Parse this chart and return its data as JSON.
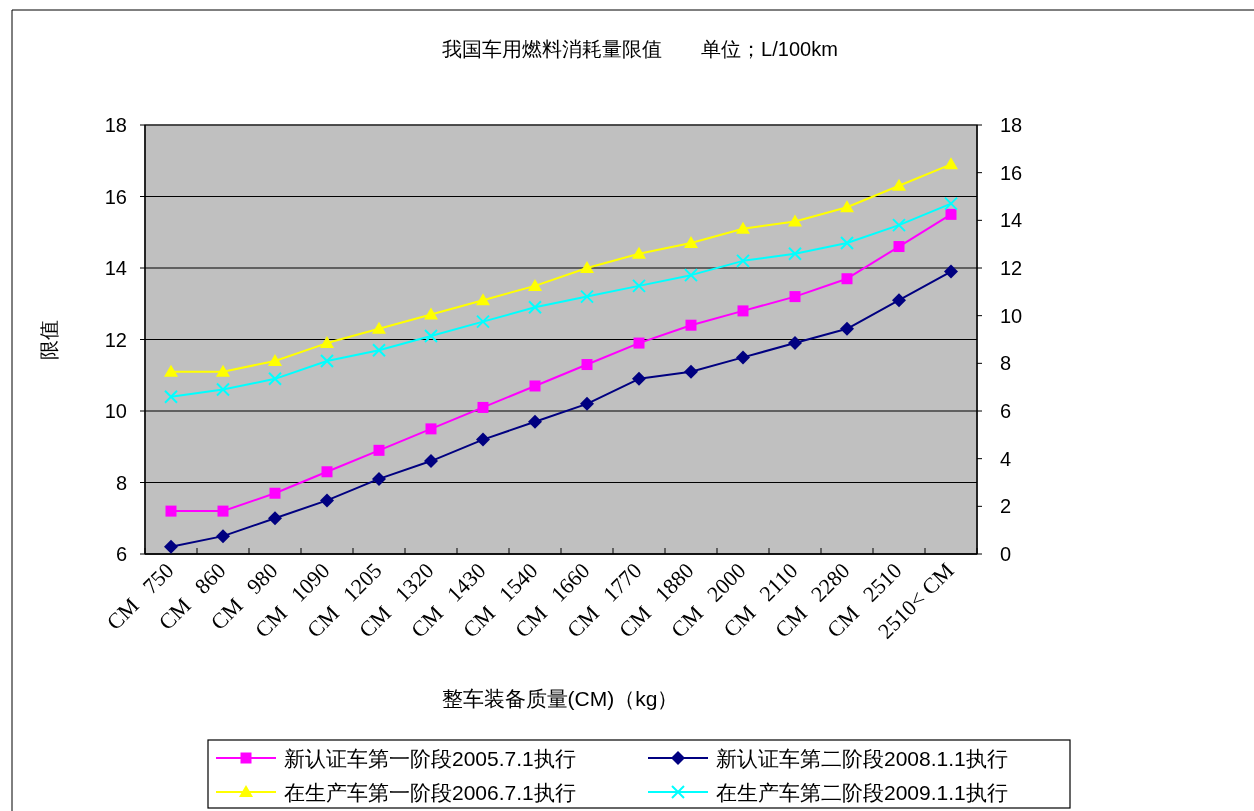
{
  "chart_data": {
    "type": "line",
    "title": "我国车用燃料消耗量限值       单位；L/100km",
    "xlabel": "整车装备质量(CM)（kg）",
    "ylabel": "限值",
    "categories": [
      "CM   750",
      "CM   860",
      "CM   980",
      "CM   1090",
      "CM   1205",
      "CM   1320",
      "CM   1430",
      "CM   1540",
      "CM   1660",
      "CM   1770",
      "CM   1880",
      "CM   2000",
      "CM   2110",
      "CM   2280",
      "CM   2510",
      "2510< CM"
    ],
    "series": [
      {
        "name": "新认证车第一阶段2005.7.1执行",
        "color": "#ff00ff",
        "marker": "square",
        "values": [
          7.2,
          7.2,
          7.7,
          8.3,
          8.9,
          9.5,
          10.1,
          10.7,
          11.3,
          11.9,
          12.4,
          12.8,
          13.2,
          13.7,
          14.6,
          15.5
        ]
      },
      {
        "name": "新认证车第二阶段2008.1.1执行",
        "color": "#000080",
        "marker": "diamond",
        "values": [
          6.2,
          6.5,
          7.0,
          7.5,
          8.1,
          8.6,
          9.2,
          9.7,
          10.2,
          10.9,
          11.1,
          11.5,
          11.9,
          12.3,
          13.1,
          13.9
        ]
      },
      {
        "name": "在生产车第一阶段2006.7.1执行",
        "color": "#ffff00",
        "marker": "triangle",
        "values": [
          11.1,
          11.1,
          11.4,
          11.9,
          12.3,
          12.7,
          13.1,
          13.5,
          14.0,
          14.4,
          14.7,
          15.1,
          15.3,
          15.7,
          16.3,
          16.9
        ]
      },
      {
        "name": "在生产车第二阶段2009.1.1执行",
        "color": "#00ffff",
        "marker": "cross",
        "values": [
          10.4,
          10.6,
          10.9,
          11.4,
          11.7,
          12.1,
          12.5,
          12.9,
          13.2,
          13.5,
          13.8,
          14.2,
          14.4,
          14.7,
          15.2,
          15.8
        ]
      }
    ],
    "ylim": [
      6,
      18
    ],
    "yticks": [
      6,
      8,
      10,
      12,
      14,
      16,
      18
    ],
    "y2lim": [
      0,
      18
    ],
    "y2ticks": [
      0,
      2,
      4,
      6,
      8,
      10,
      12,
      14,
      16,
      18
    ],
    "grid": "y",
    "legend": "bottom",
    "line_style": "solid"
  }
}
